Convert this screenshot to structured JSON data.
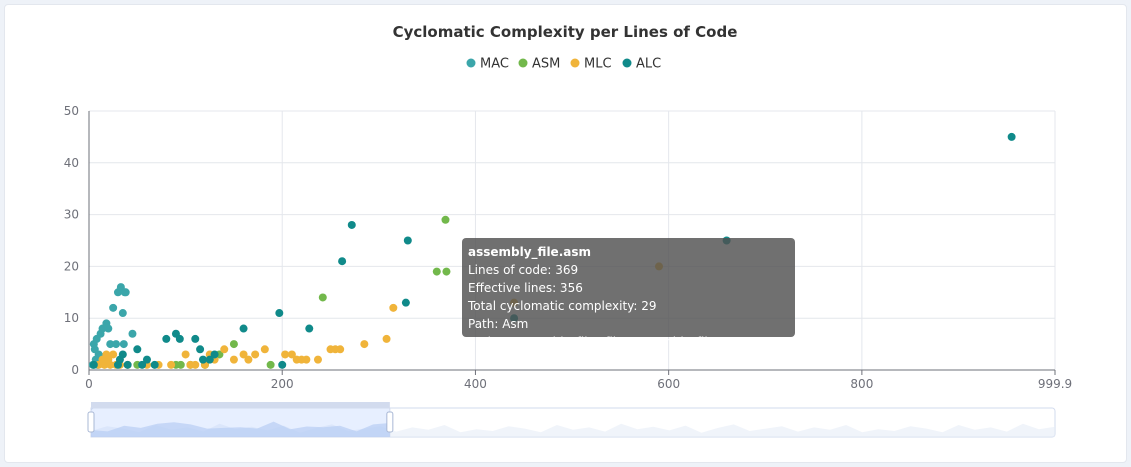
{
  "chart_data": {
    "type": "scatter",
    "title": "Cyclomatic Complexity per Lines of Code",
    "legend_position": "top-center",
    "grid": true,
    "xlim": [
      0,
      999.9
    ],
    "ylim": [
      0,
      50
    ],
    "x_ticks": [
      "0",
      "200",
      "400",
      "600",
      "800",
      "999.9"
    ],
    "y_ticks": [
      "0",
      "10",
      "20",
      "30",
      "40",
      "50"
    ],
    "series": [
      {
        "name": "MAC",
        "color": "#3ba6aa",
        "points": [
          [
            5,
            5
          ],
          [
            6,
            4
          ],
          [
            8,
            6
          ],
          [
            10,
            3
          ],
          [
            12,
            7
          ],
          [
            14,
            8
          ],
          [
            16,
            2
          ],
          [
            18,
            9
          ],
          [
            20,
            8
          ],
          [
            22,
            5
          ],
          [
            25,
            12
          ],
          [
            28,
            5
          ],
          [
            30,
            15
          ],
          [
            33,
            16
          ],
          [
            35,
            11
          ],
          [
            36,
            5
          ],
          [
            37,
            15
          ],
          [
            38,
            15
          ],
          [
            45,
            7
          ],
          [
            4,
            1
          ],
          [
            7,
            2
          ],
          [
            9,
            1
          ]
        ]
      },
      {
        "name": "ASM",
        "color": "#72b84b",
        "points": [
          [
            150,
            5
          ],
          [
            188,
            1
          ],
          [
            242,
            14
          ],
          [
            360,
            19
          ],
          [
            369,
            29
          ],
          [
            370,
            19
          ],
          [
            50,
            1
          ],
          [
            90,
            1
          ],
          [
            95,
            1
          ],
          [
            105,
            1
          ],
          [
            120,
            1
          ],
          [
            135,
            3
          ]
        ]
      },
      {
        "name": "MLC",
        "color": "#f0b43a",
        "points": [
          [
            10,
            1
          ],
          [
            14,
            2
          ],
          [
            16,
            1
          ],
          [
            18,
            3
          ],
          [
            20,
            2
          ],
          [
            22,
            1
          ],
          [
            25,
            3
          ],
          [
            28,
            1
          ],
          [
            32,
            1
          ],
          [
            40,
            1
          ],
          [
            60,
            1
          ],
          [
            72,
            1
          ],
          [
            85,
            1
          ],
          [
            100,
            3
          ],
          [
            105,
            1
          ],
          [
            110,
            1
          ],
          [
            120,
            1
          ],
          [
            125,
            3
          ],
          [
            130,
            2
          ],
          [
            140,
            4
          ],
          [
            150,
            2
          ],
          [
            160,
            3
          ],
          [
            165,
            2
          ],
          [
            172,
            3
          ],
          [
            182,
            4
          ],
          [
            203,
            3
          ],
          [
            210,
            3
          ],
          [
            215,
            2
          ],
          [
            220,
            2
          ],
          [
            225,
            2
          ],
          [
            237,
            2
          ],
          [
            250,
            4
          ],
          [
            255,
            4
          ],
          [
            260,
            4
          ],
          [
            285,
            5
          ],
          [
            308,
            6
          ],
          [
            315,
            12
          ],
          [
            440,
            13
          ],
          [
            590,
            20
          ]
        ]
      },
      {
        "name": "ALC",
        "color": "#108a8a",
        "points": [
          [
            5,
            1
          ],
          [
            30,
            1
          ],
          [
            32,
            2
          ],
          [
            35,
            3
          ],
          [
            40,
            1
          ],
          [
            50,
            4
          ],
          [
            55,
            1
          ],
          [
            60,
            2
          ],
          [
            68,
            1
          ],
          [
            80,
            6
          ],
          [
            90,
            7
          ],
          [
            94,
            6
          ],
          [
            110,
            6
          ],
          [
            115,
            4
          ],
          [
            118,
            2
          ],
          [
            125,
            2
          ],
          [
            130,
            3
          ],
          [
            160,
            8
          ],
          [
            197,
            11
          ],
          [
            200,
            1
          ],
          [
            228,
            8
          ],
          [
            262,
            21
          ],
          [
            272,
            28
          ],
          [
            328,
            13
          ],
          [
            330,
            25
          ],
          [
            440,
            10
          ],
          [
            660,
            25
          ],
          [
            955,
            45
          ]
        ]
      }
    ],
    "tooltip": {
      "title": "assembly_file.asm",
      "lines": [
        "Lines of code: 369",
        "Effective lines: 356",
        "Total cyclomatic complexity: 29",
        "Path: Asm project/assembly_files/files/assembly_file.asm"
      ]
    },
    "datazoom": {
      "start": 0,
      "end": 0.31
    }
  }
}
